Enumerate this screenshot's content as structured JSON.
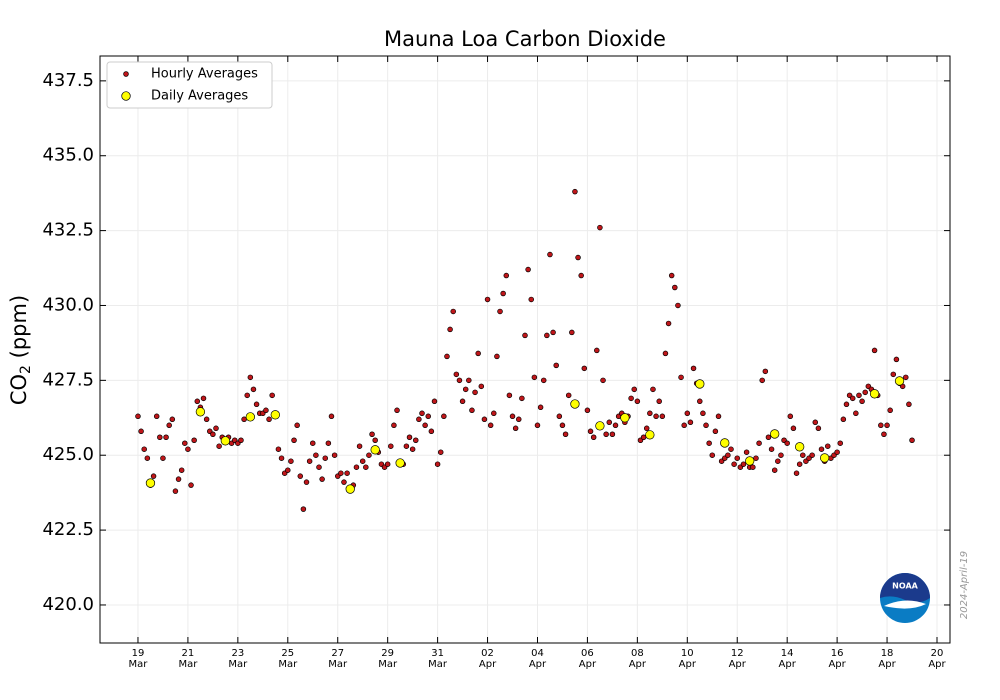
{
  "chart_data": {
    "type": "scatter",
    "title": "Mauna Loa Carbon Dioxide",
    "y_label": {
      "main": "CO",
      "sub": "2",
      "unit": " (ppm)"
    },
    "watermark": "2024-April-19",
    "logo_text": "NOAA",
    "grid": true,
    "legend": "upper-left",
    "ylim": [
      418.73,
      438.33
    ],
    "yticks": [
      {
        "value": 420,
        "label": "420.0"
      },
      {
        "value": 422.5,
        "label": "422.5"
      },
      {
        "value": 425,
        "label": "425.0"
      },
      {
        "value": 427.5,
        "label": "427.5"
      },
      {
        "value": 430,
        "label": "430.0"
      },
      {
        "value": 432.5,
        "label": "432.5"
      },
      {
        "value": 435,
        "label": "435.0"
      },
      {
        "value": 437.5,
        "label": "437.5"
      }
    ],
    "xlim": [
      "2024-03-17T11:30Z",
      "2024-04-20T12:30Z"
    ],
    "xticks": [
      {
        "value": "2024-03-19T00:00Z",
        "label": [
          "19",
          "Mar"
        ]
      },
      {
        "value": "2024-03-21T00:00Z",
        "label": [
          "21",
          "Mar"
        ]
      },
      {
        "value": "2024-03-23T00:00Z",
        "label": [
          "23",
          "Mar"
        ]
      },
      {
        "value": "2024-03-25T00:00Z",
        "label": [
          "25",
          "Mar"
        ]
      },
      {
        "value": "2024-03-27T00:00Z",
        "label": [
          "27",
          "Mar"
        ]
      },
      {
        "value": "2024-03-29T00:00Z",
        "label": [
          "29",
          "Mar"
        ]
      },
      {
        "value": "2024-03-31T00:00Z",
        "label": [
          "31",
          "Mar"
        ]
      },
      {
        "value": "2024-04-02T00:00Z",
        "label": [
          "02",
          "Apr"
        ]
      },
      {
        "value": "2024-04-04T00:00Z",
        "label": [
          "04",
          "Apr"
        ]
      },
      {
        "value": "2024-04-06T00:00Z",
        "label": [
          "06",
          "Apr"
        ]
      },
      {
        "value": "2024-04-08T00:00Z",
        "label": [
          "08",
          "Apr"
        ]
      },
      {
        "value": "2024-04-10T00:00Z",
        "label": [
          "10",
          "Apr"
        ]
      },
      {
        "value": "2024-04-12T00:00Z",
        "label": [
          "12",
          "Apr"
        ]
      },
      {
        "value": "2024-04-14T00:00Z",
        "label": [
          "14",
          "Apr"
        ]
      },
      {
        "value": "2024-04-16T00:00Z",
        "label": [
          "16",
          "Apr"
        ]
      },
      {
        "value": "2024-04-18T00:00Z",
        "label": [
          "18",
          "Apr"
        ]
      },
      {
        "value": "2024-04-20T00:00Z",
        "label": [
          "20",
          "Apr"
        ]
      }
    ],
    "series": [
      {
        "name": "Hourly Averages",
        "color": "#c0161a",
        "x": [
          "2024-03-19T00:00Z",
          "2024-03-19T03:00Z",
          "2024-03-19T06:00Z",
          "2024-03-19T09:00Z",
          "2024-03-19T12:00Z",
          "2024-03-19T15:00Z",
          "2024-03-19T18:00Z",
          "2024-03-19T21:00Z",
          "2024-03-20T00:00Z",
          "2024-03-20T03:00Z",
          "2024-03-20T06:00Z",
          "2024-03-20T09:00Z",
          "2024-03-20T12:00Z",
          "2024-03-20T15:00Z",
          "2024-03-20T18:00Z",
          "2024-03-20T21:00Z",
          "2024-03-21T00:00Z",
          "2024-03-21T03:00Z",
          "2024-03-21T06:00Z",
          "2024-03-21T09:00Z",
          "2024-03-21T12:00Z",
          "2024-03-21T15:00Z",
          "2024-03-21T18:00Z",
          "2024-03-21T21:00Z",
          "2024-03-22T00:00Z",
          "2024-03-22T03:00Z",
          "2024-03-22T06:00Z",
          "2024-03-22T09:00Z",
          "2024-03-22T12:00Z",
          "2024-03-22T15:00Z",
          "2024-03-22T18:00Z",
          "2024-03-22T21:00Z",
          "2024-03-23T00:00Z",
          "2024-03-23T03:00Z",
          "2024-03-23T06:00Z",
          "2024-03-23T09:00Z",
          "2024-03-23T12:00Z",
          "2024-03-23T15:00Z",
          "2024-03-23T18:00Z",
          "2024-03-23T21:00Z",
          "2024-03-24T00:00Z",
          "2024-03-24T03:00Z",
          "2024-03-24T06:00Z",
          "2024-03-24T09:00Z",
          "2024-03-24T12:00Z",
          "2024-03-24T15:00Z",
          "2024-03-24T18:00Z",
          "2024-03-24T21:00Z",
          "2024-03-25T00:00Z",
          "2024-03-25T03:00Z",
          "2024-03-25T06:00Z",
          "2024-03-25T09:00Z",
          "2024-03-25T12:00Z",
          "2024-03-25T15:00Z",
          "2024-03-25T18:00Z",
          "2024-03-25T21:00Z",
          "2024-03-26T00:00Z",
          "2024-03-26T03:00Z",
          "2024-03-26T06:00Z",
          "2024-03-26T09:00Z",
          "2024-03-26T12:00Z",
          "2024-03-26T15:00Z",
          "2024-03-26T18:00Z",
          "2024-03-26T21:00Z",
          "2024-03-27T00:00Z",
          "2024-03-27T03:00Z",
          "2024-03-27T06:00Z",
          "2024-03-27T09:00Z",
          "2024-03-27T12:00Z",
          "2024-03-27T15:00Z",
          "2024-03-27T18:00Z",
          "2024-03-27T21:00Z",
          "2024-03-28T00:00Z",
          "2024-03-28T03:00Z",
          "2024-03-28T06:00Z",
          "2024-03-28T09:00Z",
          "2024-03-28T12:00Z",
          "2024-03-28T15:00Z",
          "2024-03-28T18:00Z",
          "2024-03-28T21:00Z",
          "2024-03-29T00:00Z",
          "2024-03-29T03:00Z",
          "2024-03-29T06:00Z",
          "2024-03-29T09:00Z",
          "2024-03-29T12:00Z",
          "2024-03-29T15:00Z",
          "2024-03-29T18:00Z",
          "2024-03-29T21:00Z",
          "2024-03-30T00:00Z",
          "2024-03-30T03:00Z",
          "2024-03-30T06:00Z",
          "2024-03-30T09:00Z",
          "2024-03-30T12:00Z",
          "2024-03-30T15:00Z",
          "2024-03-30T18:00Z",
          "2024-03-30T21:00Z",
          "2024-03-31T00:00Z",
          "2024-03-31T03:00Z",
          "2024-03-31T06:00Z",
          "2024-03-31T09:00Z",
          "2024-03-31T12:00Z",
          "2024-03-31T15:00Z",
          "2024-03-31T18:00Z",
          "2024-03-31T21:00Z",
          "2024-04-01T00:00Z",
          "2024-04-01T03:00Z",
          "2024-04-01T06:00Z",
          "2024-04-01T09:00Z",
          "2024-04-01T12:00Z",
          "2024-04-01T15:00Z",
          "2024-04-01T18:00Z",
          "2024-04-01T21:00Z",
          "2024-04-02T00:00Z",
          "2024-04-02T03:00Z",
          "2024-04-02T06:00Z",
          "2024-04-02T09:00Z",
          "2024-04-02T12:00Z",
          "2024-04-02T15:00Z",
          "2024-04-02T18:00Z",
          "2024-04-02T21:00Z",
          "2024-04-03T00:00Z",
          "2024-04-03T03:00Z",
          "2024-04-03T06:00Z",
          "2024-04-03T09:00Z",
          "2024-04-03T12:00Z",
          "2024-04-03T15:00Z",
          "2024-04-03T18:00Z",
          "2024-04-03T21:00Z",
          "2024-04-04T00:00Z",
          "2024-04-04T03:00Z",
          "2024-04-04T06:00Z",
          "2024-04-04T09:00Z",
          "2024-04-04T12:00Z",
          "2024-04-04T15:00Z",
          "2024-04-04T18:00Z",
          "2024-04-04T21:00Z",
          "2024-04-05T00:00Z",
          "2024-04-05T03:00Z",
          "2024-04-05T06:00Z",
          "2024-04-05T09:00Z",
          "2024-04-05T12:00Z",
          "2024-04-05T15:00Z",
          "2024-04-05T18:00Z",
          "2024-04-05T21:00Z",
          "2024-04-06T00:00Z",
          "2024-04-06T03:00Z",
          "2024-04-06T06:00Z",
          "2024-04-06T09:00Z",
          "2024-04-06T12:00Z",
          "2024-04-06T15:00Z",
          "2024-04-06T18:00Z",
          "2024-04-06T21:00Z",
          "2024-04-07T00:00Z",
          "2024-04-07T03:00Z",
          "2024-04-07T06:00Z",
          "2024-04-07T09:00Z",
          "2024-04-07T12:00Z",
          "2024-04-07T15:00Z",
          "2024-04-07T18:00Z",
          "2024-04-07T21:00Z",
          "2024-04-08T00:00Z",
          "2024-04-08T03:00Z",
          "2024-04-08T06:00Z",
          "2024-04-08T09:00Z",
          "2024-04-08T12:00Z",
          "2024-04-08T15:00Z",
          "2024-04-08T18:00Z",
          "2024-04-08T21:00Z",
          "2024-04-09T00:00Z",
          "2024-04-09T03:00Z",
          "2024-04-09T06:00Z",
          "2024-04-09T09:00Z",
          "2024-04-09T12:00Z",
          "2024-04-09T15:00Z",
          "2024-04-09T18:00Z",
          "2024-04-09T21:00Z",
          "2024-04-10T00:00Z",
          "2024-04-10T03:00Z",
          "2024-04-10T06:00Z",
          "2024-04-10T09:00Z",
          "2024-04-10T12:00Z",
          "2024-04-10T15:00Z",
          "2024-04-10T18:00Z",
          "2024-04-10T21:00Z",
          "2024-04-11T00:00Z",
          "2024-04-11T03:00Z",
          "2024-04-11T06:00Z",
          "2024-04-11T09:00Z",
          "2024-04-11T12:00Z",
          "2024-04-11T15:00Z",
          "2024-04-11T18:00Z",
          "2024-04-11T21:00Z",
          "2024-04-12T00:00Z",
          "2024-04-12T03:00Z",
          "2024-04-12T06:00Z",
          "2024-04-12T09:00Z",
          "2024-04-12T12:00Z",
          "2024-04-12T15:00Z",
          "2024-04-12T18:00Z",
          "2024-04-12T21:00Z",
          "2024-04-13T00:00Z",
          "2024-04-13T03:00Z",
          "2024-04-13T06:00Z",
          "2024-04-13T09:00Z",
          "2024-04-13T12:00Z",
          "2024-04-13T15:00Z",
          "2024-04-13T18:00Z",
          "2024-04-13T21:00Z",
          "2024-04-14T00:00Z",
          "2024-04-14T03:00Z",
          "2024-04-14T06:00Z",
          "2024-04-14T09:00Z",
          "2024-04-14T12:00Z",
          "2024-04-14T15:00Z",
          "2024-04-14T18:00Z",
          "2024-04-14T21:00Z",
          "2024-04-15T00:00Z",
          "2024-04-15T03:00Z",
          "2024-04-15T06:00Z",
          "2024-04-15T09:00Z",
          "2024-04-15T12:00Z",
          "2024-04-15T15:00Z",
          "2024-04-15T18:00Z",
          "2024-04-15T21:00Z",
          "2024-04-16T00:00Z",
          "2024-04-16T03:00Z",
          "2024-04-16T06:00Z",
          "2024-04-16T09:00Z",
          "2024-04-16T12:00Z",
          "2024-04-16T15:00Z",
          "2024-04-16T18:00Z",
          "2024-04-16T21:00Z",
          "2024-04-17T00:00Z",
          "2024-04-17T03:00Z",
          "2024-04-17T06:00Z",
          "2024-04-17T09:00Z",
          "2024-04-17T12:00Z",
          "2024-04-17T15:00Z",
          "2024-04-17T18:00Z",
          "2024-04-17T21:00Z",
          "2024-04-18T00:00Z",
          "2024-04-18T03:00Z",
          "2024-04-18T06:00Z",
          "2024-04-18T09:00Z",
          "2024-04-18T12:00Z",
          "2024-04-18T15:00Z",
          "2024-04-18T18:00Z",
          "2024-04-18T21:00Z",
          "2024-04-19T00:00Z"
        ],
        "values": [
          426.3,
          425.8,
          425.2,
          424.9,
          424.0,
          424.3,
          426.3,
          425.6,
          424.9,
          425.6,
          426.0,
          426.2,
          423.8,
          424.2,
          424.5,
          425.4,
          425.2,
          424.0,
          425.5,
          426.8,
          426.6,
          426.9,
          426.2,
          425.8,
          425.7,
          425.9,
          425.3,
          425.6,
          425.5,
          425.6,
          425.4,
          425.5,
          425.4,
          425.5,
          426.2,
          427.0,
          427.6,
          427.2,
          426.7,
          426.4,
          426.4,
          426.5,
          426.2,
          427.0,
          426.3,
          425.2,
          424.9,
          424.4,
          424.5,
          424.8,
          425.5,
          426.0,
          424.3,
          423.2,
          424.1,
          424.8,
          425.4,
          425.0,
          424.6,
          424.2,
          424.9,
          425.4,
          426.3,
          425.0,
          424.3,
          424.4,
          424.1,
          424.4,
          423.9,
          424.0,
          424.6,
          425.3,
          424.8,
          424.6,
          425.0,
          425.7,
          425.5,
          425.1,
          424.7,
          424.6,
          424.7,
          425.3,
          426.0,
          426.5,
          424.8,
          424.7,
          425.3,
          425.6,
          425.2,
          425.5,
          426.2,
          426.4,
          426.0,
          426.3,
          425.8,
          426.8,
          424.7,
          425.1,
          426.3,
          428.3,
          429.2,
          429.8,
          427.7,
          427.5,
          426.8,
          427.2,
          427.5,
          426.5,
          427.1,
          428.4,
          427.3,
          426.2,
          430.2,
          426.0,
          426.4,
          428.3,
          429.8,
          430.4,
          431.0,
          427.0,
          426.3,
          425.9,
          426.2,
          426.9,
          429.0,
          431.2,
          430.2,
          427.6,
          426.0,
          426.6,
          427.5,
          429.0,
          431.7,
          429.1,
          428.0,
          426.3,
          426.0,
          425.7,
          427.0,
          429.1,
          433.8,
          431.6,
          431.0,
          427.9,
          426.5,
          425.8,
          425.6,
          428.5,
          432.6,
          427.5,
          425.7,
          426.1,
          425.7,
          426.0,
          426.3,
          426.4,
          426.1,
          426.3,
          426.9,
          427.2,
          426.8,
          425.5,
          425.6,
          425.9,
          426.4,
          427.2,
          426.3,
          426.8,
          426.3,
          428.4,
          429.4,
          431.0,
          430.6,
          430.0,
          427.6,
          426.0,
          426.4,
          426.1,
          427.9,
          427.4,
          426.8,
          426.4,
          426.0,
          425.4,
          425.0,
          425.8,
          426.3,
          424.8,
          424.9,
          425.0,
          425.2,
          424.7,
          424.9,
          424.6,
          424.7,
          425.1,
          424.6,
          424.6,
          424.9,
          425.4,
          427.5,
          427.8,
          425.6,
          425.2,
          424.5,
          424.8,
          425.0,
          425.5,
          425.4,
          426.3,
          425.9,
          424.4,
          424.7,
          425.0,
          424.8,
          424.9,
          425.0,
          426.1,
          425.9,
          425.2,
          424.8,
          425.3,
          424.9,
          425.0,
          425.1,
          425.4,
          426.2,
          426.7,
          427.0,
          426.9,
          426.4,
          427.0,
          426.8,
          427.1,
          427.3,
          427.2,
          428.5,
          427.0,
          426.0,
          425.7,
          426.0,
          426.5,
          427.7,
          428.2,
          427.4,
          427.3,
          427.6,
          426.7,
          425.5
        ]
      },
      {
        "name": "Daily Averages",
        "color": "#ffff00",
        "x": [
          "2024-03-19T12:00Z",
          "2024-03-21T12:00Z",
          "2024-03-22T12:00Z",
          "2024-03-23T12:00Z",
          "2024-03-24T12:00Z",
          "2024-03-27T12:00Z",
          "2024-03-28T12:00Z",
          "2024-03-29T12:00Z",
          "2024-04-05T12:00Z",
          "2024-04-06T12:00Z",
          "2024-04-07T12:00Z",
          "2024-04-08T12:00Z",
          "2024-04-10T12:00Z",
          "2024-04-11T12:00Z",
          "2024-04-12T12:00Z",
          "2024-04-13T12:00Z",
          "2024-04-14T12:00Z",
          "2024-04-15T12:00Z",
          "2024-04-17T12:00Z",
          "2024-04-18T12:00Z"
        ],
        "values": [
          424.07,
          426.45,
          425.48,
          426.28,
          426.35,
          423.87,
          425.18,
          424.74,
          426.71,
          425.98,
          426.25,
          425.68,
          427.38,
          425.41,
          424.81,
          425.71,
          425.28,
          424.91,
          427.05,
          427.48
        ]
      }
    ]
  }
}
